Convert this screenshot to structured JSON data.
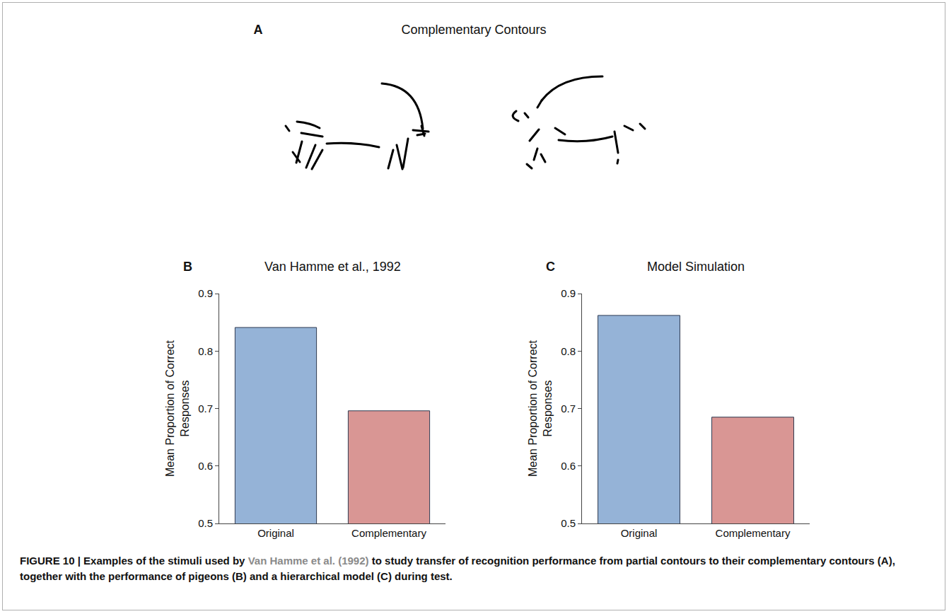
{
  "panel_a": {
    "panel_label": "A",
    "title": "Complementary Contours"
  },
  "chart_data": [
    {
      "panel_label": "B",
      "type": "bar",
      "title": "Van Hamme et al., 1992",
      "categories": [
        "Original",
        "Complementary"
      ],
      "values": [
        0.841,
        0.696
      ],
      "colors": [
        "#95b3d7",
        "#d99694"
      ],
      "y_label": "Mean Proportion of Correct Responses",
      "ylim": [
        0.5,
        0.9
      ],
      "yticks": [
        0.5,
        0.6,
        0.7,
        0.8,
        0.9
      ],
      "grid": false
    },
    {
      "panel_label": "C",
      "type": "bar",
      "title": "Model Simulation",
      "categories": [
        "Original",
        "Complementary"
      ],
      "values": [
        0.862,
        0.685
      ],
      "colors": [
        "#95b3d7",
        "#d99694"
      ],
      "y_label": "Mean Proportion of Correct Responses",
      "ylim": [
        0.5,
        0.9
      ],
      "yticks": [
        0.5,
        0.6,
        0.7,
        0.8,
        0.9
      ],
      "grid": false
    }
  ],
  "caption": [
    {
      "text": "FIGURE 10 | Examples of the stimuli used by "
    },
    {
      "text": "Van Hamme et al. (1992)",
      "cited": true
    },
    {
      "text": " to study transfer of recognition performance from partial contours to their complementary contours (A), together with the performance of pigeons (B) and a hierarchical model (C) during test."
    }
  ]
}
